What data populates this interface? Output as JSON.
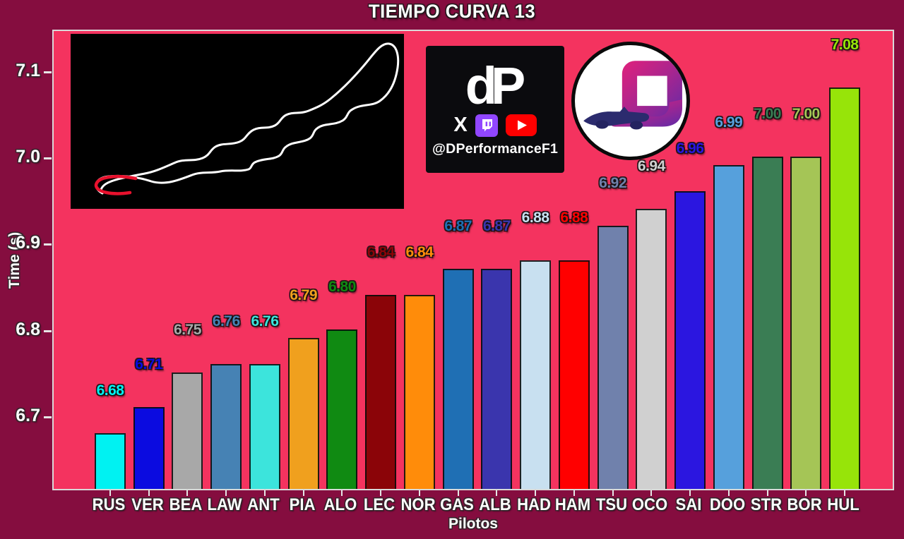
{
  "title": "TIEMPO CURVA 13",
  "chart_data": {
    "type": "bar",
    "title": "TIEMPO CURVA 13",
    "xlabel": "Pilotos",
    "ylabel": "Time (s)",
    "ylim": [
      6.615,
      7.149
    ],
    "yticks": [
      "6.7",
      "6.8",
      "6.9",
      "7.0",
      "7.1"
    ],
    "grid": false,
    "legend": false,
    "figure_bg": "#850D3F",
    "plot_bg": "#F4335F",
    "categories": [
      "RUS",
      "VER",
      "BEA",
      "LAW",
      "ANT",
      "PIA",
      "ALO",
      "LEC",
      "NOR",
      "GAS",
      "ALB",
      "HAD",
      "HAM",
      "TSU",
      "OCO",
      "SAI",
      "DOO",
      "STR",
      "BOR",
      "HUL"
    ],
    "values": [
      6.68,
      6.71,
      6.75,
      6.76,
      6.76,
      6.79,
      6.8,
      6.84,
      6.84,
      6.87,
      6.87,
      6.88,
      6.88,
      6.92,
      6.94,
      6.96,
      6.99,
      7.0,
      7.0,
      7.08
    ],
    "value_labels": [
      "6.68",
      "6.71",
      "6.75",
      "6.76",
      "6.76",
      "6.79",
      "6.80",
      "6.84",
      "6.84",
      "6.87",
      "6.87",
      "6.88",
      "6.88",
      "6.92",
      "6.94",
      "6.96",
      "6.99",
      "7.00",
      "7.00",
      "7.08"
    ],
    "bar_colors": [
      "#00F2F2",
      "#0B0BE0",
      "#A8A8A8",
      "#4682B4",
      "#3CE4DC",
      "#F0A01E",
      "#108A12",
      "#8B0408",
      "#FF8C0A",
      "#1F6FB4",
      "#3A35AD",
      "#C8E0F0",
      "#FF0000",
      "#7081AC",
      "#D0D0D0",
      "#2B16E0",
      "#56A0DC",
      "#3A7D54",
      "#A5C556",
      "#97E409"
    ]
  },
  "track_inset": {
    "background": "#000000",
    "track_color": "#FFFFFF",
    "highlight_color": "#E8112D"
  },
  "branding": {
    "monogram": "dP",
    "x_label": "X",
    "handle": "@DPerformanceF1",
    "twitch_color": "#9146FF",
    "youtube_color": "#FF0000"
  }
}
